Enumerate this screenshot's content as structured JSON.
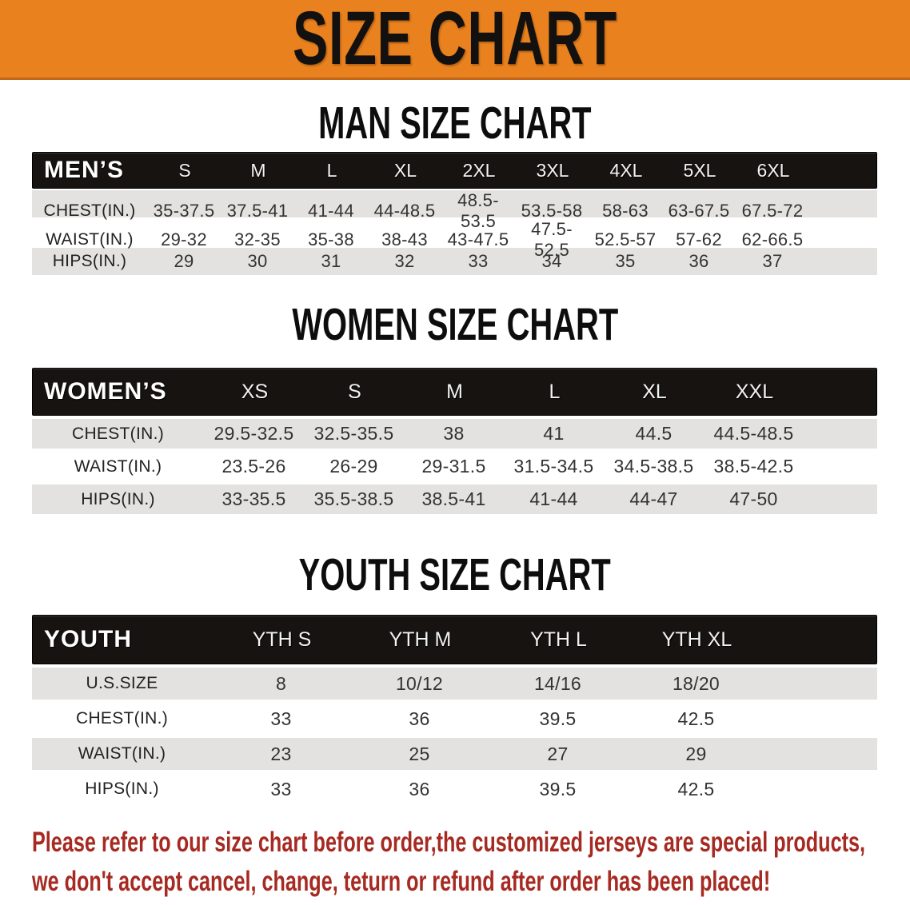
{
  "banner": {
    "title": "SIZE CHART"
  },
  "men": {
    "heading": "MAN SIZE CHART",
    "header_label": "MEN’S",
    "sizes": [
      "S",
      "M",
      "L",
      "XL",
      "2XL",
      "3XL",
      "4XL",
      "5XL",
      "6XL"
    ],
    "rows": [
      {
        "label": "CHEST(IN.)",
        "values": [
          "35-37.5",
          "37.5-41",
          "41-44",
          "44-48.5",
          "48.5-53.5",
          "53.5-58",
          "58-63",
          "63-67.5",
          "67.5-72"
        ]
      },
      {
        "label": "WAIST(IN.)",
        "values": [
          "29-32",
          "32-35",
          "35-38",
          "38-43",
          "43-47.5",
          "47.5-52.5",
          "52.5-57",
          "57-62",
          "62-66.5"
        ]
      },
      {
        "label": "HIPS(IN.)",
        "values": [
          "29",
          "30",
          "31",
          "32",
          "33",
          "34",
          "35",
          "36",
          "37"
        ]
      }
    ]
  },
  "women": {
    "heading": "WOMEN SIZE CHART",
    "header_label": "WOMEN’S",
    "sizes": [
      "XS",
      "S",
      "M",
      "L",
      "XL",
      "XXL"
    ],
    "rows": [
      {
        "label": "CHEST(IN.)",
        "values": [
          "29.5-32.5",
          "32.5-35.5",
          "38",
          "41",
          "44.5",
          "44.5-48.5"
        ]
      },
      {
        "label": "WAIST(IN.)",
        "values": [
          "23.5-26",
          "26-29",
          "29-31.5",
          "31.5-34.5",
          "34.5-38.5",
          "38.5-42.5"
        ]
      },
      {
        "label": "HIPS(IN.)",
        "values": [
          "33-35.5",
          "35.5-38.5",
          "38.5-41",
          "41-44",
          "44-47",
          "47-50"
        ]
      }
    ]
  },
  "youth": {
    "heading": "YOUTH SIZE CHART",
    "header_label": "YOUTH",
    "sizes": [
      "YTH S",
      "YTH M",
      "YTH L",
      "YTH XL"
    ],
    "rows": [
      {
        "label": "U.S.SIZE",
        "values": [
          "8",
          "10/12",
          "14/16",
          "18/20"
        ]
      },
      {
        "label": "CHEST(IN.)",
        "values": [
          "33",
          "36",
          "39.5",
          "42.5"
        ]
      },
      {
        "label": "WAIST(IN.)",
        "values": [
          "23",
          "25",
          "27",
          "29"
        ]
      },
      {
        "label": "HIPS(IN.)",
        "values": [
          "33",
          "36",
          "39.5",
          "42.5"
        ]
      }
    ]
  },
  "disclaimer": {
    "line1": "Please refer to our size chart before order,the customized jerseys are special products,",
    "line2": "we don't accept cancel, change, teturn or refund after order has been placed!"
  },
  "colors": {
    "banner_bg": "#e8811e",
    "header_band_bg": "#171310",
    "alt_row_bg": "#e3e2e0",
    "disclaimer_text": "#a62a22"
  }
}
